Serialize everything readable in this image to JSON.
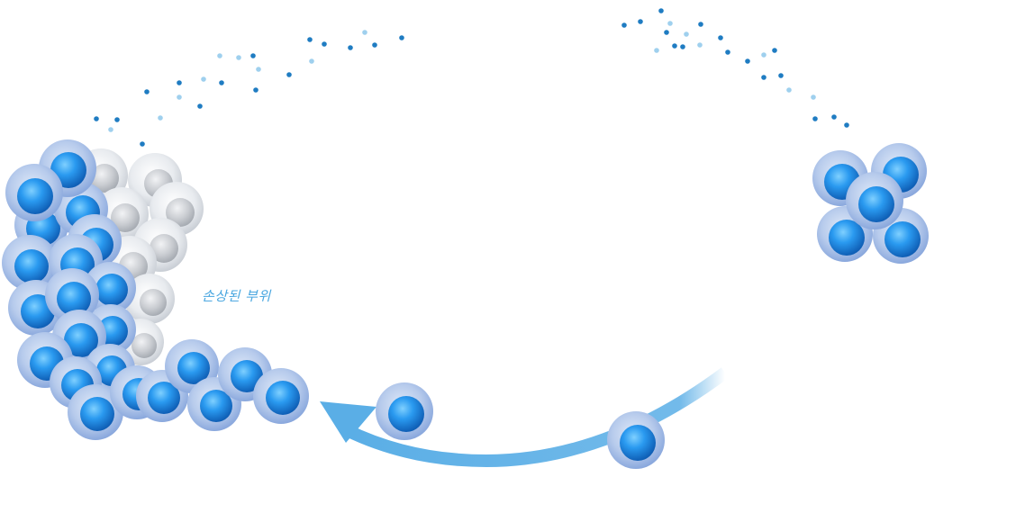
{
  "labels": {
    "damaged_area": "손상된 부위"
  },
  "colors": {
    "arrow": "#5aaee6",
    "cell_membrane": "#a9c3ea",
    "cell_nucleus": "#1e88e0",
    "damaged_cell": "#d9dde2",
    "dot_dark": "#1f7cc2",
    "dot_light": "#9fd0ee",
    "label": "#4aa7e0"
  }
}
